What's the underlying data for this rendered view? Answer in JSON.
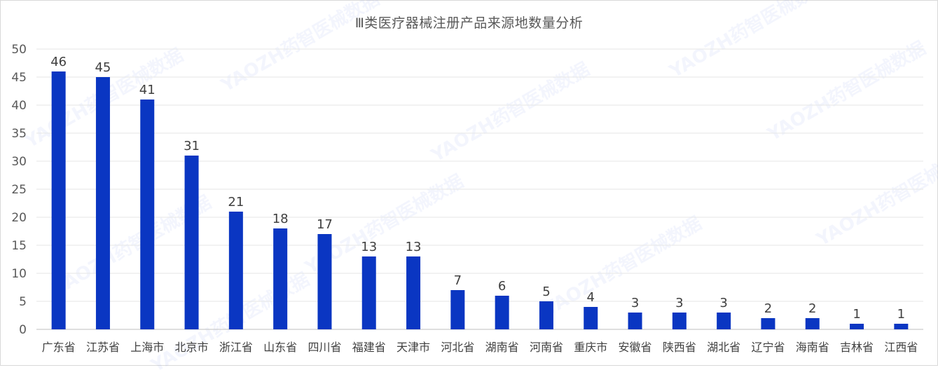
{
  "chart_data": {
    "type": "bar",
    "title": "Ⅲ类医疗器械注册产品来源地数量分析",
    "categories": [
      "广东省",
      "江苏省",
      "上海市",
      "北京市",
      "浙江省",
      "山东省",
      "四川省",
      "福建省",
      "天津市",
      "河北省",
      "湖南省",
      "河南省",
      "重庆市",
      "安徽省",
      "陕西省",
      "湖北省",
      "辽宁省",
      "海南省",
      "吉林省",
      "江西省"
    ],
    "values": [
      46,
      45,
      41,
      31,
      21,
      18,
      17,
      13,
      13,
      7,
      6,
      5,
      4,
      3,
      3,
      3,
      2,
      2,
      1,
      1
    ],
    "yticks": [
      "0",
      "5",
      "10",
      "15",
      "20",
      "25",
      "30",
      "35",
      "40",
      "45",
      "50"
    ],
    "ylim": [
      0,
      50
    ],
    "xlabel": "",
    "ylabel": "",
    "grid": true,
    "legend": "none",
    "bar_color": "#0a36c2"
  },
  "watermark": "YAOZH药智医械数据"
}
